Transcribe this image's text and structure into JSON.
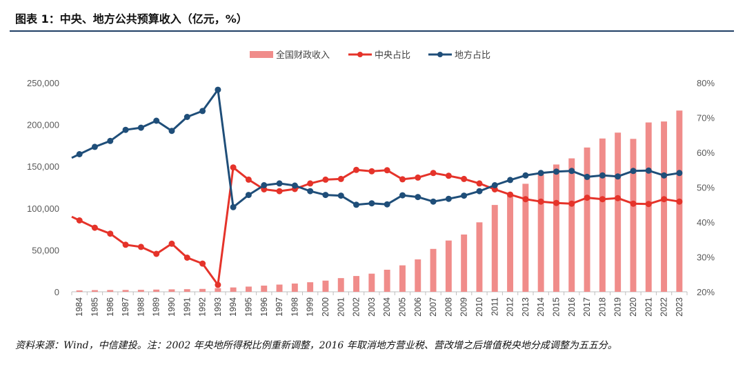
{
  "title": "图表 1：中央、地方公共预算收入（亿元，%）",
  "source": "资料来源：Wind，中信建投。注：2002 年央地所得税比例重新调整，2016 年取消地方营业税、营改增之后增值税央地分成调整为五五分。",
  "colors": {
    "bar": "#f08c8a",
    "central": "#e5332a",
    "local": "#1f4e79",
    "rule": "#1f3e64"
  },
  "chart_data": {
    "type": "bar+line",
    "categories": [
      "1984",
      "1985",
      "1986",
      "1987",
      "1988",
      "1989",
      "1990",
      "1991",
      "1992",
      "1993",
      "1994",
      "1995",
      "1996",
      "1997",
      "1998",
      "1999",
      "2000",
      "2001",
      "2002",
      "2003",
      "2004",
      "2005",
      "2006",
      "2007",
      "2008",
      "2009",
      "2010",
      "2011",
      "2012",
      "2013",
      "2014",
      "2015",
      "2016",
      "2017",
      "2018",
      "2019",
      "2020",
      "2021",
      "2022",
      "2023"
    ],
    "left_axis": {
      "min": 0,
      "max": 250000,
      "step": 50000,
      "tick_labels": [
        "0",
        "50,000",
        "100,000",
        "150,000",
        "200,000",
        "250,000"
      ]
    },
    "right_axis": {
      "min": 20,
      "max": 80,
      "step": 10,
      "tick_labels": [
        "20%",
        "30%",
        "40%",
        "50%",
        "60%",
        "70%",
        "80%"
      ]
    },
    "series": [
      {
        "name": "全国财政收入",
        "type": "bar",
        "axis": "left",
        "values": [
          1643,
          2005,
          2122,
          2199,
          2357,
          2665,
          2937,
          3149,
          3483,
          4349,
          5218,
          6242,
          7408,
          8651,
          9876,
          11444,
          13395,
          16386,
          18904,
          21715,
          26396,
          31649,
          38760,
          51322,
          61330,
          68518,
          83102,
          103874,
          117254,
          129210,
          140370,
          152269,
          159605,
          172593,
          183360,
          190390,
          182914,
          202555,
          203703,
          216784
        ]
      },
      {
        "name": "中央占比",
        "type": "line",
        "axis": "right",
        "values": [
          40.5,
          38.4,
          36.7,
          33.5,
          32.9,
          30.9,
          33.8,
          29.8,
          28.1,
          22.0,
          55.7,
          52.2,
          49.4,
          48.9,
          49.5,
          51.1,
          52.2,
          52.4,
          55.0,
          54.6,
          54.9,
          52.3,
          52.8,
          54.1,
          53.3,
          52.4,
          51.1,
          49.4,
          47.9,
          46.6,
          45.9,
          45.5,
          45.3,
          47.0,
          46.6,
          46.9,
          45.3,
          45.2,
          46.6,
          45.9
        ]
      },
      {
        "name": "地方占比",
        "type": "line",
        "axis": "right",
        "values": [
          59.5,
          61.6,
          63.3,
          66.5,
          67.1,
          69.1,
          66.2,
          70.2,
          71.9,
          78.0,
          44.3,
          47.8,
          50.6,
          51.1,
          50.5,
          48.9,
          47.8,
          47.6,
          45.0,
          45.4,
          45.1,
          47.7,
          47.2,
          45.9,
          46.7,
          47.6,
          48.9,
          50.6,
          52.1,
          53.4,
          54.1,
          54.5,
          54.7,
          53.0,
          53.4,
          53.1,
          54.7,
          54.8,
          53.4,
          54.1
        ]
      }
    ],
    "legend": [
      "全国财政收入",
      "中央占比",
      "地方占比"
    ],
    "legend_position": "top-center",
    "grid": false
  }
}
